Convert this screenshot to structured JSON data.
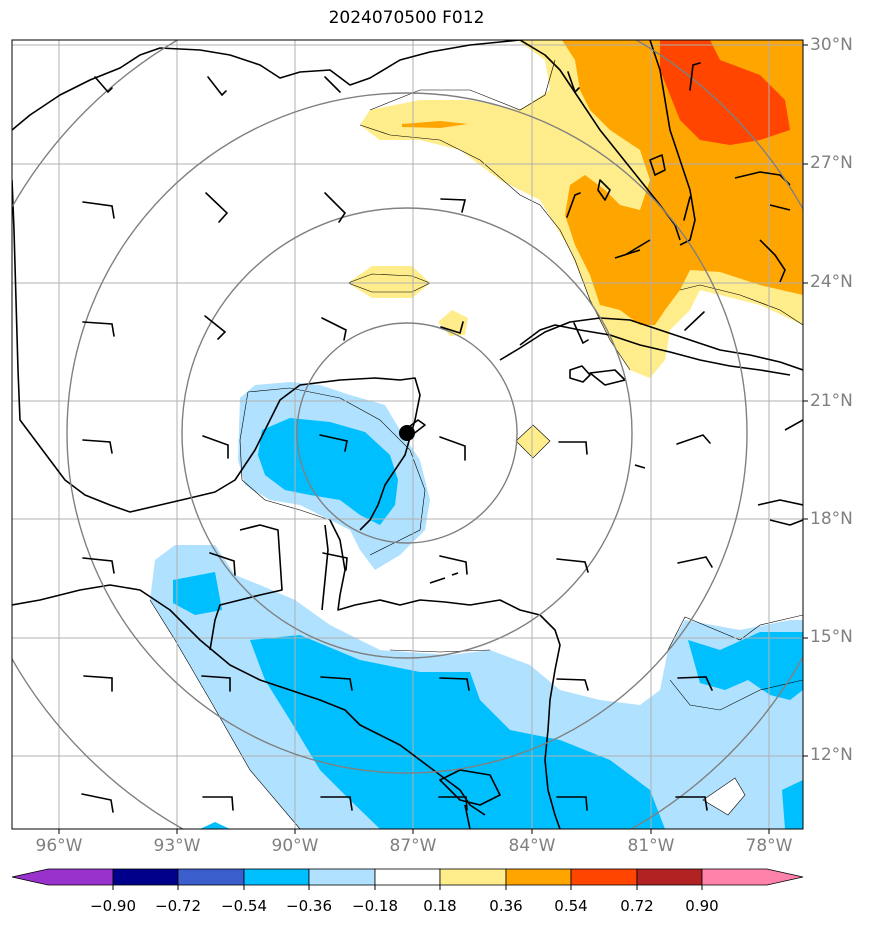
{
  "title": "2024070500 F012",
  "lat_labels": [
    "30°N",
    "27°N",
    "24°N",
    "21°N",
    "18°N",
    "15°N",
    "12°N"
  ],
  "lon_labels": [
    "96°W",
    "93°W",
    "90°W",
    "87°W",
    "84°W",
    "81°W",
    "78°W"
  ],
  "colorbar": {
    "tick_labels": [
      "−0.90",
      "−0.72",
      "−0.54",
      "−0.36",
      "−0.18",
      "0.18",
      "0.36",
      "0.54",
      "0.72",
      "0.90"
    ],
    "colors": [
      "#9932cc",
      "#00008b",
      "#3a5fcd",
      "#00bfff",
      "#b0e2ff",
      "#ffffff",
      "#ffec8b",
      "#ffa500",
      "#ff4500",
      "#b22222",
      "#ff82ab"
    ]
  },
  "colors": {
    "grid": "#b0b0b0",
    "range_rings": "#808080",
    "coastline": "#000000",
    "storm_marker": "#000000"
  }
}
